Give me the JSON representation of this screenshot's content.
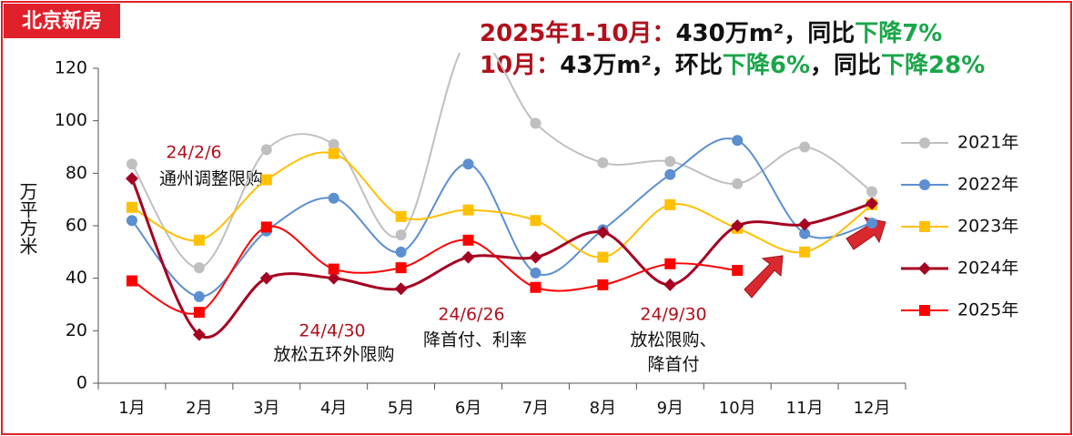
{
  "badge": "北京新房",
  "headline": [
    [
      {
        "text": "2025年1-10月：",
        "color": "#b0101c"
      },
      {
        "text": "430万m²，同比",
        "color": "#111111"
      },
      {
        "text": "下降7%",
        "color": "#1aa64a"
      }
    ],
    [
      {
        "text": "10月：",
        "color": "#b0101c"
      },
      {
        "text": "43万m²，环比",
        "color": "#111111"
      },
      {
        "text": "下降6%",
        "color": "#1aa64a"
      },
      {
        "text": "，同比",
        "color": "#111111"
      },
      {
        "text": "下降28%",
        "color": "#1aa64a"
      }
    ]
  ],
  "chart_data": {
    "type": "line",
    "y_label": "万平方米",
    "categories": [
      "1月",
      "2月",
      "3月",
      "4月",
      "5月",
      "6月",
      "7月",
      "8月",
      "9月",
      "10月",
      "11月",
      "12月"
    ],
    "ylim": [
      0,
      120
    ],
    "yticks": [
      0,
      20,
      40,
      60,
      80,
      100,
      120
    ],
    "smooth": true,
    "series": [
      {
        "name": "2021年",
        "color": "#bfbfbf",
        "marker": "circle",
        "values": [
          83.5,
          44,
          89,
          91,
          56.5,
          131,
          99,
          84,
          84.5,
          76,
          90,
          73
        ]
      },
      {
        "name": "2022年",
        "color": "#5b8fd0",
        "marker": "circle",
        "values": [
          62,
          33,
          58,
          70.5,
          50,
          83.5,
          42,
          58.5,
          79.5,
          92.5,
          57,
          61
        ]
      },
      {
        "name": "2023年",
        "color": "#ffc000",
        "marker": "square",
        "values": [
          67,
          54.5,
          77.5,
          87.5,
          63.5,
          66,
          62,
          48,
          68,
          59,
          50,
          68
        ]
      },
      {
        "name": "2024年",
        "color": "#a50021",
        "marker": "diamond",
        "values": [
          78,
          18.5,
          40,
          40,
          36,
          48,
          48,
          57.5,
          37.5,
          60,
          60.5,
          68.5
        ]
      },
      {
        "name": "2025年",
        "color": "#ff0000",
        "marker": "square",
        "values": [
          39,
          27,
          59.5,
          43.5,
          44,
          54.5,
          36.5,
          37.5,
          45.5,
          43,
          null,
          null
        ]
      }
    ],
    "annotations": [
      {
        "text": "24/2/6",
        "color": "#b0101c"
      },
      {
        "text": "通州调整限购",
        "color": "#111111"
      },
      {
        "text": "24/4/30",
        "color": "#b0101c"
      },
      {
        "text": "放松五环外限购",
        "color": "#111111"
      },
      {
        "text": "24/6/26",
        "color": "#b0101c"
      },
      {
        "text": "降首付、利率",
        "color": "#111111"
      },
      {
        "text": "24/9/30",
        "color": "#b0101c"
      },
      {
        "text": "放松限购、",
        "color": "#111111"
      },
      {
        "text": "降首付",
        "color": "#111111"
      }
    ]
  }
}
